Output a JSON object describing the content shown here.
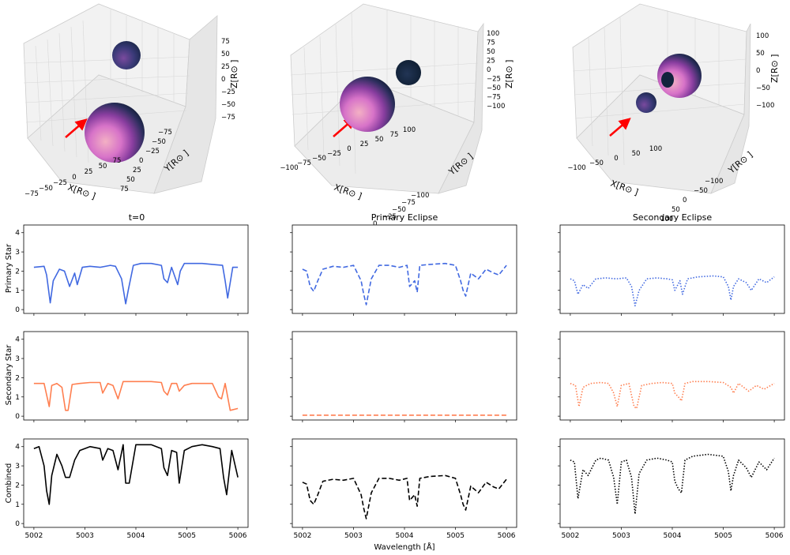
{
  "figure": {
    "xlabel_shared": "Wavelength [Å]",
    "col_titles": [
      "t=0",
      "Primary Eclipse",
      "Secondary Eclipse"
    ],
    "row_labels": [
      "Primary Star",
      "Secondary Star",
      "Combined"
    ]
  },
  "scene_axes": {
    "x_label": "X[R⊙ ]",
    "y_label": "Y[R⊙ ]",
    "z_label": "Z[R⊙ ]"
  },
  "colors": {
    "primary": "#4169e1",
    "secondary": "#ff7f50",
    "combined": "#000000",
    "arrow": "#ff0000"
  },
  "chart_data": [
    {
      "type": "scatter3d",
      "title": "",
      "xticks": [
        "−75",
        "−50",
        "−25",
        "0",
        "25",
        "50",
        "75"
      ],
      "yticks": [
        "−75",
        "−50",
        "−25",
        "0",
        "25",
        "50",
        "75"
      ],
      "zticks": [
        "75",
        "50",
        "25",
        "0",
        "−25",
        "−50",
        "−75"
      ]
    },
    {
      "type": "scatter3d",
      "title": "",
      "xticks": [
        "−100",
        "−75",
        "−50",
        "−25",
        "0",
        "25",
        "50",
        "75",
        "100"
      ],
      "yticks": [
        "−100",
        "−75",
        "−50",
        "−25",
        "0",
        "25",
        "50",
        "75",
        "100"
      ],
      "zticks": [
        "100",
        "75",
        "50",
        "25",
        "0",
        "−25",
        "−50",
        "−75",
        "−100"
      ]
    },
    {
      "type": "scatter3d",
      "title": "",
      "xticks": [
        "−100",
        "−50",
        "0",
        "50",
        "100"
      ],
      "yticks": [
        "−100",
        "−50",
        "0",
        "50",
        "100"
      ],
      "zticks": [
        "100",
        "50",
        "0",
        "−50",
        "−100"
      ]
    },
    {
      "type": "line",
      "grid": false,
      "xlim": [
        5001.8,
        5006.2
      ],
      "ylim": [
        -0.2,
        4.4
      ],
      "xticks": [
        5002,
        5003,
        5004,
        5005,
        5006
      ],
      "yticks": [
        0,
        1,
        2,
        3,
        4
      ],
      "panels": [
        {
          "row": 0,
          "col": 0,
          "series": "primary",
          "style": "solid",
          "x": [
            5002.0,
            5002.2,
            5002.25,
            5002.32,
            5002.38,
            5002.5,
            5002.6,
            5002.7,
            5002.8,
            5002.85,
            5002.95,
            5003.1,
            5003.3,
            5003.5,
            5003.6,
            5003.72,
            5003.8,
            5003.85,
            5003.95,
            5004.1,
            5004.3,
            5004.5,
            5004.55,
            5004.62,
            5004.7,
            5004.82,
            5004.87,
            5004.95,
            5005.1,
            5005.3,
            5005.5,
            5005.7,
            5005.75,
            5005.8,
            5005.9,
            5006.0
          ],
          "y": [
            2.2,
            2.25,
            1.8,
            0.35,
            1.5,
            2.1,
            2.0,
            1.2,
            1.9,
            1.3,
            2.2,
            2.25,
            2.2,
            2.3,
            2.25,
            1.6,
            0.3,
            1.0,
            2.3,
            2.4,
            2.4,
            2.3,
            1.6,
            1.4,
            2.2,
            1.3,
            2.0,
            2.4,
            2.4,
            2.4,
            2.35,
            2.3,
            1.5,
            0.6,
            2.2,
            2.2
          ]
        },
        {
          "row": 0,
          "col": 1,
          "series": "primary",
          "style": "dashed",
          "x": [
            5002.0,
            5002.08,
            5002.15,
            5002.22,
            5002.3,
            5002.4,
            5002.6,
            5002.8,
            5003.0,
            5003.15,
            5003.2,
            5003.25,
            5003.35,
            5003.5,
            5003.7,
            5003.9,
            5004.05,
            5004.1,
            5004.2,
            5004.25,
            5004.3,
            5004.5,
            5004.8,
            5005.0,
            5005.1,
            5005.15,
            5005.2,
            5005.3,
            5005.45,
            5005.6,
            5005.75,
            5005.85,
            5006.0
          ],
          "y": [
            2.1,
            2.0,
            1.2,
            0.95,
            1.5,
            2.1,
            2.25,
            2.2,
            2.3,
            1.5,
            0.8,
            0.25,
            1.6,
            2.3,
            2.3,
            2.2,
            2.3,
            1.2,
            1.5,
            0.9,
            2.3,
            2.35,
            2.4,
            2.3,
            1.5,
            1.0,
            0.7,
            1.9,
            1.6,
            2.1,
            1.9,
            1.8,
            2.3
          ]
        },
        {
          "row": 0,
          "col": 2,
          "series": "primary",
          "style": "dotted",
          "x": [
            5002.0,
            5002.08,
            5002.15,
            5002.25,
            5002.35,
            5002.5,
            5002.7,
            5002.9,
            5003.1,
            5003.2,
            5003.27,
            5003.35,
            5003.5,
            5003.7,
            5003.9,
            5004.0,
            5004.05,
            5004.15,
            5004.2,
            5004.3,
            5004.5,
            5004.8,
            5005.0,
            5005.1,
            5005.15,
            5005.2,
            5005.3,
            5005.45,
            5005.55,
            5005.7,
            5005.85,
            5006.0
          ],
          "y": [
            1.6,
            1.5,
            0.8,
            1.3,
            1.1,
            1.6,
            1.65,
            1.6,
            1.65,
            1.2,
            0.2,
            1.0,
            1.6,
            1.65,
            1.6,
            1.55,
            1.0,
            1.5,
            0.8,
            1.6,
            1.7,
            1.75,
            1.7,
            1.2,
            0.5,
            1.2,
            1.6,
            1.4,
            1.0,
            1.6,
            1.4,
            1.7
          ]
        },
        {
          "row": 1,
          "col": 0,
          "series": "secondary",
          "style": "solid",
          "x": [
            5002.0,
            5002.2,
            5002.3,
            5002.35,
            5002.45,
            5002.55,
            5002.62,
            5002.67,
            5002.75,
            5002.9,
            5003.1,
            5003.3,
            5003.35,
            5003.45,
            5003.55,
            5003.65,
            5003.75,
            5004.0,
            5004.3,
            5004.5,
            5004.55,
            5004.62,
            5004.7,
            5004.8,
            5004.85,
            5004.95,
            5005.1,
            5005.3,
            5005.5,
            5005.62,
            5005.68,
            5005.75,
            5005.85,
            5006.0
          ],
          "y": [
            1.7,
            1.7,
            0.5,
            1.6,
            1.7,
            1.5,
            0.3,
            0.3,
            1.65,
            1.7,
            1.75,
            1.75,
            1.2,
            1.7,
            1.6,
            0.9,
            1.8,
            1.8,
            1.8,
            1.75,
            1.3,
            1.1,
            1.7,
            1.7,
            1.3,
            1.6,
            1.7,
            1.7,
            1.7,
            1.0,
            0.9,
            1.7,
            0.3,
            0.4
          ]
        },
        {
          "row": 1,
          "col": 1,
          "series": "secondary",
          "style": "dashed",
          "x": [
            5002.0,
            5003.0,
            5004.0,
            5005.0,
            5006.0
          ],
          "y": [
            0.05,
            0.05,
            0.05,
            0.05,
            0.05
          ]
        },
        {
          "row": 1,
          "col": 2,
          "series": "secondary",
          "style": "dotted",
          "x": [
            5002.0,
            5002.1,
            5002.17,
            5002.25,
            5002.4,
            5002.6,
            5002.75,
            5002.85,
            5002.92,
            5003.0,
            5003.15,
            5003.25,
            5003.3,
            5003.4,
            5003.6,
            5003.8,
            5004.0,
            5004.05,
            5004.12,
            5004.18,
            5004.25,
            5004.4,
            5004.7,
            5005.0,
            5005.15,
            5005.2,
            5005.3,
            5005.4,
            5005.5,
            5005.65,
            5005.8,
            5006.0
          ],
          "y": [
            1.7,
            1.6,
            0.5,
            1.5,
            1.7,
            1.75,
            1.7,
            1.2,
            0.5,
            1.6,
            1.7,
            0.5,
            0.4,
            1.6,
            1.7,
            1.75,
            1.7,
            1.2,
            1.0,
            0.8,
            1.7,
            1.8,
            1.8,
            1.75,
            1.5,
            1.2,
            1.7,
            1.5,
            1.3,
            1.6,
            1.4,
            1.7
          ]
        },
        {
          "row": 2,
          "col": 0,
          "series": "combined",
          "style": "solid",
          "x": [
            5002.0,
            5002.1,
            5002.2,
            5002.25,
            5002.3,
            5002.35,
            5002.45,
            5002.55,
            5002.62,
            5002.7,
            5002.8,
            5002.9,
            5003.1,
            5003.3,
            5003.35,
            5003.45,
            5003.55,
            5003.65,
            5003.75,
            5003.8,
            5003.87,
            5004.0,
            5004.3,
            5004.5,
            5004.55,
            5004.62,
            5004.7,
            5004.8,
            5004.85,
            5004.95,
            5005.1,
            5005.3,
            5005.5,
            5005.65,
            5005.72,
            5005.78,
            5005.88,
            5006.0
          ],
          "y": [
            3.9,
            4.0,
            3.0,
            1.7,
            1.0,
            2.5,
            3.6,
            3.0,
            2.4,
            2.4,
            3.3,
            3.8,
            4.0,
            3.9,
            3.3,
            3.9,
            3.8,
            2.8,
            4.1,
            2.1,
            2.1,
            4.1,
            4.1,
            3.9,
            2.9,
            2.5,
            3.8,
            3.7,
            2.1,
            3.8,
            4.0,
            4.1,
            4.0,
            3.9,
            2.4,
            1.5,
            3.8,
            2.4
          ]
        },
        {
          "row": 2,
          "col": 1,
          "series": "combined",
          "style": "dashed",
          "x": [
            5002.0,
            5002.08,
            5002.15,
            5002.22,
            5002.3,
            5002.4,
            5002.6,
            5002.8,
            5003.0,
            5003.15,
            5003.2,
            5003.25,
            5003.35,
            5003.5,
            5003.7,
            5003.9,
            5004.05,
            5004.1,
            5004.2,
            5004.25,
            5004.3,
            5004.5,
            5004.8,
            5005.0,
            5005.1,
            5005.15,
            5005.2,
            5005.3,
            5005.45,
            5005.6,
            5005.75,
            5005.85,
            5006.0
          ],
          "y": [
            2.15,
            2.05,
            1.2,
            1.0,
            1.5,
            2.2,
            2.3,
            2.25,
            2.35,
            1.5,
            0.8,
            0.25,
            1.6,
            2.35,
            2.35,
            2.25,
            2.35,
            1.2,
            1.5,
            0.9,
            2.35,
            2.45,
            2.5,
            2.35,
            1.5,
            1.0,
            0.7,
            1.95,
            1.6,
            2.15,
            1.9,
            1.8,
            2.3
          ]
        },
        {
          "row": 2,
          "col": 2,
          "series": "combined",
          "style": "dotted",
          "x": [
            5002.0,
            5002.08,
            5002.15,
            5002.25,
            5002.35,
            5002.5,
            5002.6,
            5002.75,
            5002.85,
            5002.92,
            5003.0,
            5003.1,
            5003.2,
            5003.27,
            5003.35,
            5003.5,
            5003.7,
            5003.9,
            5004.0,
            5004.05,
            5004.12,
            5004.18,
            5004.25,
            5004.4,
            5004.7,
            5005.0,
            5005.1,
            5005.15,
            5005.2,
            5005.3,
            5005.45,
            5005.55,
            5005.7,
            5005.85,
            5006.0
          ],
          "y": [
            3.3,
            3.2,
            1.3,
            2.8,
            2.5,
            3.3,
            3.4,
            3.3,
            2.4,
            1.0,
            3.2,
            3.3,
            2.4,
            0.5,
            2.6,
            3.3,
            3.4,
            3.3,
            3.2,
            2.2,
            1.8,
            1.6,
            3.3,
            3.5,
            3.6,
            3.5,
            2.7,
            1.7,
            2.5,
            3.3,
            2.9,
            2.4,
            3.2,
            2.8,
            3.4
          ]
        }
      ]
    }
  ]
}
